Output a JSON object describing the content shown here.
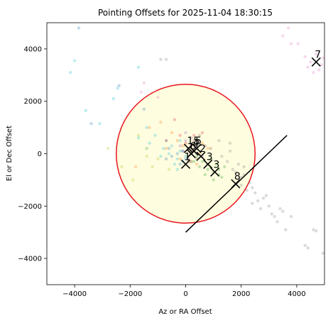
{
  "chart_data": {
    "type": "scatter",
    "title": "Pointing Offsets for 2025-11-04 18:30:15",
    "xlabel": "Az or RA Offset",
    "ylabel": "El or Dec Offset",
    "xlim": [
      -5000,
      5000
    ],
    "ylim": [
      -5000,
      5000
    ],
    "xticks": [
      -4000,
      -2000,
      0,
      2000,
      4000
    ],
    "yticks": [
      -4000,
      -2000,
      0,
      2000,
      4000
    ],
    "xtick_labels": [
      "−4000",
      "−2000",
      "0",
      "2000",
      "4000"
    ],
    "ytick_labels": [
      "−4000",
      "−2000",
      "0",
      "2000",
      "4000"
    ],
    "grid": false,
    "circle": {
      "center": [
        0,
        0
      ],
      "radius": 2500,
      "edge_color": "#e8141c",
      "fill_color": "#fffde0"
    },
    "line": {
      "x": [
        0,
        3650
      ],
      "y": [
        -3000,
        700
      ],
      "color": "#000000"
    },
    "scatter_groups": [
      {
        "color": "#17becf",
        "points": [
          [
            -4000,
            3550
          ],
          [
            -3600,
            1650
          ],
          [
            -4150,
            3100
          ],
          [
            -1700,
            3300
          ],
          [
            -2450,
            2500
          ],
          [
            -1400,
            1000
          ],
          [
            -1700,
            600
          ],
          [
            -1100,
            700
          ],
          [
            -700,
            500
          ],
          [
            -500,
            300
          ],
          [
            -800,
            200
          ],
          [
            -600,
            0
          ],
          [
            -300,
            -200
          ],
          [
            -200,
            100
          ],
          [
            -100,
            -300
          ],
          [
            0,
            -100
          ],
          [
            100,
            200
          ],
          [
            -900,
            -100
          ],
          [
            -400,
            -400
          ],
          [
            -200,
            500
          ],
          [
            -3100,
            1150
          ],
          [
            -2600,
            2100
          ],
          [
            -1300,
            400
          ],
          [
            -300,
            -600
          ]
        ]
      },
      {
        "color": "#1f77b4",
        "points": [
          [
            -3850,
            4800
          ],
          [
            -3400,
            1150
          ],
          [
            -2400,
            2600
          ],
          [
            -1500,
            1700
          ],
          [
            -700,
            -200
          ],
          [
            -500,
            -100
          ],
          [
            -200,
            -400
          ],
          [
            -300,
            0
          ],
          [
            0,
            -200
          ],
          [
            -100,
            100
          ],
          [
            200,
            -300
          ],
          [
            -600,
            200
          ]
        ]
      },
      {
        "color": "#e377c2",
        "points": [
          [
            3700,
            4800
          ],
          [
            3500,
            4500
          ],
          [
            4050,
            4200
          ],
          [
            4300,
            3700
          ],
          [
            4500,
            3500
          ],
          [
            4800,
            3200
          ],
          [
            4700,
            3800
          ],
          [
            4900,
            3400
          ],
          [
            4600,
            3100
          ],
          [
            4400,
            3300
          ],
          [
            -1500,
            2700
          ],
          [
            -1000,
            2150
          ],
          [
            -1600,
            2350
          ],
          [
            3800,
            4200
          ],
          [
            4950,
            3650
          ]
        ]
      },
      {
        "color": "#ff7f0e",
        "points": [
          [
            -1800,
            -500
          ],
          [
            -1300,
            1000
          ],
          [
            -900,
            1200
          ],
          [
            -500,
            800
          ],
          [
            -300,
            500
          ],
          [
            -100,
            300
          ],
          [
            100,
            200
          ],
          [
            300,
            100
          ],
          [
            500,
            0
          ],
          [
            200,
            -300
          ],
          [
            -200,
            -200
          ],
          [
            600,
            400
          ],
          [
            -700,
            200
          ],
          [
            400,
            -400
          ],
          [
            800,
            200
          ]
        ]
      },
      {
        "color": "#2ca02c",
        "points": [
          [
            400,
            -100
          ],
          [
            600,
            -300
          ],
          [
            800,
            -400
          ],
          [
            1000,
            -700
          ],
          [
            1200,
            -600
          ],
          [
            700,
            -800
          ],
          [
            900,
            -200
          ],
          [
            500,
            -500
          ],
          [
            1100,
            -400
          ],
          [
            1300,
            -900
          ],
          [
            300,
            -300
          ],
          [
            1000,
            -1000
          ],
          [
            1400,
            -500
          ],
          [
            800,
            -600
          ],
          [
            -1400,
            200
          ],
          [
            900,
            -500
          ],
          [
            1200,
            -800
          ]
        ]
      },
      {
        "color": "#9467bd",
        "points": [
          [
            -200,
            300
          ],
          [
            0,
            500
          ],
          [
            200,
            600
          ],
          [
            300,
            200
          ],
          [
            400,
            0
          ],
          [
            100,
            -200
          ],
          [
            -100,
            100
          ],
          [
            500,
            400
          ],
          [
            600,
            -100
          ],
          [
            0,
            800
          ]
        ]
      },
      {
        "color": "#8c564b",
        "points": [
          [
            300,
            500
          ],
          [
            500,
            700
          ],
          [
            700,
            300
          ],
          [
            200,
            100
          ],
          [
            400,
            -200
          ],
          [
            900,
            200
          ],
          [
            100,
            -300
          ]
        ]
      },
      {
        "color": "#d62728",
        "points": [
          [
            -400,
            1300
          ],
          [
            -200,
            700
          ],
          [
            0,
            400
          ],
          [
            300,
            700
          ],
          [
            600,
            800
          ],
          [
            200,
            300
          ],
          [
            -700,
            500
          ]
        ]
      },
      {
        "color": "#7f7f7f",
        "points": [
          [
            -700,
            3600
          ],
          [
            -900,
            3600
          ],
          [
            1600,
            400
          ],
          [
            1800,
            -700
          ],
          [
            2000,
            -900
          ],
          [
            2100,
            -800
          ],
          [
            2300,
            -1100
          ],
          [
            2500,
            -1500
          ],
          [
            2600,
            -1800
          ],
          [
            2800,
            -1700
          ],
          [
            3000,
            -2000
          ],
          [
            3100,
            -2300
          ],
          [
            3200,
            -2400
          ],
          [
            3500,
            -2200
          ],
          [
            3300,
            -2600
          ],
          [
            3600,
            -2900
          ],
          [
            2400,
            -1300
          ],
          [
            2200,
            -1400
          ],
          [
            2700,
            -2100
          ],
          [
            2900,
            -1600
          ],
          [
            3400,
            -2100
          ],
          [
            2000,
            -1200
          ],
          [
            1900,
            -400
          ],
          [
            1700,
            -600
          ],
          [
            2100,
            -500
          ],
          [
            1500,
            -300
          ],
          [
            1300,
            -100
          ],
          [
            4600,
            -2900
          ],
          [
            4700,
            -2950
          ],
          [
            4300,
            -3500
          ],
          [
            4400,
            -3600
          ],
          [
            4950,
            -3800
          ],
          [
            3800,
            -2400
          ],
          [
            1200,
            500
          ],
          [
            1600,
            100
          ],
          [
            2400,
            -1900
          ]
        ]
      },
      {
        "color": "#bcbd22",
        "points": [
          [
            -2800,
            200
          ],
          [
            -2300,
            -500
          ],
          [
            -1900,
            -1000
          ],
          [
            -1000,
            -200
          ],
          [
            -600,
            -600
          ],
          [
            -1400,
            -100
          ],
          [
            -1700,
            700
          ],
          [
            -1200,
            -500
          ]
        ]
      }
    ],
    "markers": [
      {
        "label": "1",
        "x": 0,
        "y": -400
      },
      {
        "label": "15",
        "x": 100,
        "y": 200
      },
      {
        "label": "6",
        "x": 200,
        "y": 0
      },
      {
        "label": "4",
        "x": 300,
        "y": 100
      },
      {
        "label": "5",
        "x": 400,
        "y": 200
      },
      {
        "label": "2",
        "x": 550,
        "y": -100
      },
      {
        "label": "3",
        "x": 800,
        "y": -400
      },
      {
        "label": "3",
        "x": 1050,
        "y": -700
      },
      {
        "label": "8",
        "x": 1800,
        "y": -1150
      },
      {
        "label": "7",
        "x": 4700,
        "y": 3500
      }
    ]
  }
}
